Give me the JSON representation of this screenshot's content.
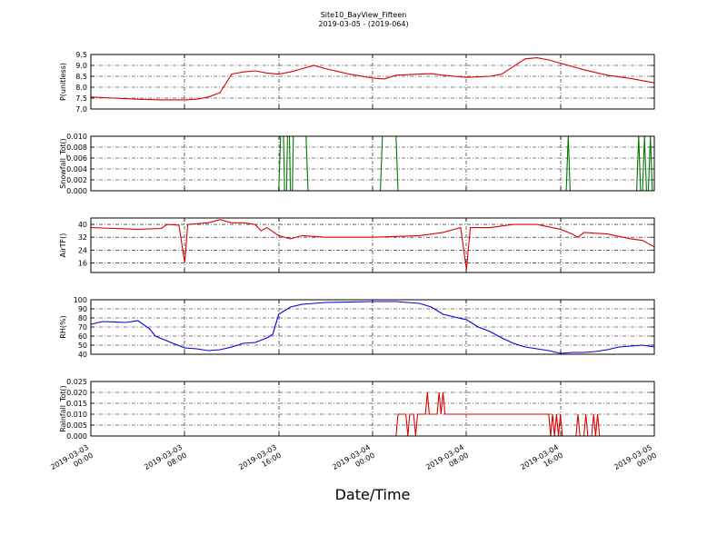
{
  "figure": {
    "title": "Site10_BayView_Fifteen",
    "subtitle": "2019-03-05 - (2019-064)",
    "xlabel": "Date/Time",
    "x_ticks": [
      {
        "l1": "2019-03-03",
        "l2": "00:00"
      },
      {
        "l1": "2019-03-03",
        "l2": "08:00"
      },
      {
        "l1": "2019-03-03",
        "l2": "16:00"
      },
      {
        "l1": "2019-03-04",
        "l2": "00:00"
      },
      {
        "l1": "2019-03-04",
        "l2": "08:00"
      },
      {
        "l1": "2019-03-04",
        "l2": "16:00"
      },
      {
        "l1": "2019-03-05",
        "l2": "00:00"
      }
    ]
  },
  "chart_data": [
    {
      "type": "line",
      "ylabel": "P(unitless)",
      "ylim": [
        7.0,
        9.5
      ],
      "yticks": [
        "7.0",
        "7.5",
        "8.0",
        "8.5",
        "9.0",
        "9.5"
      ],
      "grid": true,
      "xlim": [
        "2019-03-03 00:00",
        "2019-03-05 00:00"
      ],
      "color": "#dd0000",
      "points": [
        [
          "2019-03-03 00:00",
          7.55
        ],
        [
          "2019-03-03 02:00",
          7.5
        ],
        [
          "2019-03-03 04:00",
          7.45
        ],
        [
          "2019-03-03 06:00",
          7.42
        ],
        [
          "2019-03-03 08:00",
          7.42
        ],
        [
          "2019-03-03 09:00",
          7.45
        ],
        [
          "2019-03-03 10:00",
          7.55
        ],
        [
          "2019-03-03 11:00",
          7.75
        ],
        [
          "2019-03-03 12:00",
          8.6
        ],
        [
          "2019-03-03 13:00",
          8.7
        ],
        [
          "2019-03-03 14:00",
          8.75
        ],
        [
          "2019-03-03 15:00",
          8.65
        ],
        [
          "2019-03-03 16:00",
          8.6
        ],
        [
          "2019-03-03 17:00",
          8.7
        ],
        [
          "2019-03-03 18:00",
          8.85
        ],
        [
          "2019-03-03 19:00",
          9.0
        ],
        [
          "2019-03-03 20:00",
          8.85
        ],
        [
          "2019-03-03 22:00",
          8.6
        ],
        [
          "2019-03-04 00:00",
          8.42
        ],
        [
          "2019-03-04 01:00",
          8.38
        ],
        [
          "2019-03-04 02:00",
          8.55
        ],
        [
          "2019-03-04 04:00",
          8.6
        ],
        [
          "2019-03-04 05:00",
          8.62
        ],
        [
          "2019-03-04 06:00",
          8.55
        ],
        [
          "2019-03-04 08:00",
          8.45
        ],
        [
          "2019-03-04 10:00",
          8.5
        ],
        [
          "2019-03-04 11:00",
          8.6
        ],
        [
          "2019-03-04 12:00",
          8.95
        ],
        [
          "2019-03-04 13:00",
          9.3
        ],
        [
          "2019-03-04 14:00",
          9.35
        ],
        [
          "2019-03-04 15:00",
          9.25
        ],
        [
          "2019-03-04 16:00",
          9.1
        ],
        [
          "2019-03-04 18:00",
          8.8
        ],
        [
          "2019-03-04 20:00",
          8.55
        ],
        [
          "2019-03-04 22:00",
          8.4
        ],
        [
          "2019-03-05 00:00",
          8.2
        ]
      ]
    },
    {
      "type": "line",
      "ylabel": "Snowfall_Tot()",
      "ylim": [
        0.0,
        0.01
      ],
      "yticks": [
        "0.000",
        "0.002",
        "0.004",
        "0.006",
        "0.008",
        "0.010"
      ],
      "grid": true,
      "xlim": [
        "2019-03-03 00:00",
        "2019-03-05 00:00"
      ],
      "color": "#007700",
      "points": [
        [
          "2019-03-03 00:00",
          0
        ],
        [
          "2019-03-03 16:00",
          0
        ],
        [
          "2019-03-03 16:10",
          0.01
        ],
        [
          "2019-03-03 16:25",
          0.01
        ],
        [
          "2019-03-03 16:30",
          0
        ],
        [
          "2019-03-03 16:40",
          0
        ],
        [
          "2019-03-03 16:45",
          0.01
        ],
        [
          "2019-03-03 16:55",
          0.01
        ],
        [
          "2019-03-03 17:00",
          0
        ],
        [
          "2019-03-03 17:10",
          0
        ],
        [
          "2019-03-03 17:15",
          0.01
        ],
        [
          "2019-03-03 18:20",
          0.01
        ],
        [
          "2019-03-03 18:30",
          0
        ],
        [
          "2019-03-04 00:00",
          0
        ],
        [
          "2019-03-04 00:40",
          0
        ],
        [
          "2019-03-04 00:50",
          0.01
        ],
        [
          "2019-03-04 02:00",
          0.01
        ],
        [
          "2019-03-04 02:10",
          0
        ],
        [
          "2019-03-04 16:30",
          0
        ],
        [
          "2019-03-04 16:40",
          0.01
        ],
        [
          "2019-03-04 16:50",
          0
        ],
        [
          "2019-03-04 22:30",
          0
        ],
        [
          "2019-03-04 22:40",
          0.01
        ],
        [
          "2019-03-04 22:50",
          0
        ],
        [
          "2019-03-04 23:00",
          0
        ],
        [
          "2019-03-04 23:10",
          0.01
        ],
        [
          "2019-03-04 23:20",
          0
        ],
        [
          "2019-03-04 23:30",
          0
        ],
        [
          "2019-03-04 23:40",
          0.01
        ],
        [
          "2019-03-04 23:50",
          0
        ],
        [
          "2019-03-05 00:00",
          0
        ]
      ]
    },
    {
      "type": "line",
      "ylabel": "AirTF()",
      "ylim": [
        10,
        44
      ],
      "yticks": [
        "16",
        "24",
        "32",
        "40"
      ],
      "grid": true,
      "xlim": [
        "2019-03-03 00:00",
        "2019-03-05 00:00"
      ],
      "color": "#dd0000",
      "points": [
        [
          "2019-03-03 00:00",
          38
        ],
        [
          "2019-03-03 02:00",
          37.5
        ],
        [
          "2019-03-03 04:00",
          37
        ],
        [
          "2019-03-03 06:00",
          37.5
        ],
        [
          "2019-03-03 06:30",
          40
        ],
        [
          "2019-03-03 07:30",
          39.5
        ],
        [
          "2019-03-03 08:00",
          16
        ],
        [
          "2019-03-03 08:15",
          40
        ],
        [
          "2019-03-03 10:00",
          41
        ],
        [
          "2019-03-03 11:00",
          43
        ],
        [
          "2019-03-03 12:00",
          41
        ],
        [
          "2019-03-03 13:00",
          41
        ],
        [
          "2019-03-03 14:00",
          40
        ],
        [
          "2019-03-03 14:30",
          36
        ],
        [
          "2019-03-03 15:00",
          38
        ],
        [
          "2019-03-03 16:00",
          33
        ],
        [
          "2019-03-03 17:00",
          31
        ],
        [
          "2019-03-03 18:00",
          33
        ],
        [
          "2019-03-03 20:00",
          32
        ],
        [
          "2019-03-04 00:00",
          32
        ],
        [
          "2019-03-04 04:00",
          33
        ],
        [
          "2019-03-04 06:00",
          35
        ],
        [
          "2019-03-04 07:30",
          38
        ],
        [
          "2019-03-04 08:00",
          12
        ],
        [
          "2019-03-04 08:20",
          38
        ],
        [
          "2019-03-04 10:00",
          38
        ],
        [
          "2019-03-04 12:00",
          40
        ],
        [
          "2019-03-04 14:00",
          40
        ],
        [
          "2019-03-04 16:00",
          37
        ],
        [
          "2019-03-04 17:00",
          34
        ],
        [
          "2019-03-04 17:30",
          32
        ],
        [
          "2019-03-04 18:00",
          35
        ],
        [
          "2019-03-04 20:00",
          34
        ],
        [
          "2019-03-04 22:00",
          31
        ],
        [
          "2019-03-04 23:00",
          30
        ],
        [
          "2019-03-05 00:00",
          26
        ]
      ]
    },
    {
      "type": "line",
      "ylabel": "RH(%)",
      "ylim": [
        40,
        100
      ],
      "yticks": [
        "40",
        "50",
        "60",
        "70",
        "80",
        "90",
        "100"
      ],
      "grid": true,
      "xlim": [
        "2019-03-03 00:00",
        "2019-03-05 00:00"
      ],
      "color": "#0000dd",
      "points": [
        [
          "2019-03-03 00:00",
          73
        ],
        [
          "2019-03-03 01:00",
          76
        ],
        [
          "2019-03-03 03:00",
          75
        ],
        [
          "2019-03-03 04:00",
          77
        ],
        [
          "2019-03-03 05:00",
          68
        ],
        [
          "2019-03-03 05:30",
          60
        ],
        [
          "2019-03-03 07:00",
          52
        ],
        [
          "2019-03-03 08:00",
          47
        ],
        [
          "2019-03-03 09:00",
          46
        ],
        [
          "2019-03-03 10:00",
          44
        ],
        [
          "2019-03-03 11:00",
          45
        ],
        [
          "2019-03-03 12:00",
          48
        ],
        [
          "2019-03-03 13:00",
          52
        ],
        [
          "2019-03-03 14:00",
          53
        ],
        [
          "2019-03-03 15:00",
          58
        ],
        [
          "2019-03-03 15:30",
          62
        ],
        [
          "2019-03-03 16:00",
          84
        ],
        [
          "2019-03-03 17:00",
          92
        ],
        [
          "2019-03-03 18:00",
          95
        ],
        [
          "2019-03-03 20:00",
          97
        ],
        [
          "2019-03-04 00:00",
          98
        ],
        [
          "2019-03-04 02:00",
          98
        ],
        [
          "2019-03-04 04:00",
          96
        ],
        [
          "2019-03-04 05:00",
          92
        ],
        [
          "2019-03-04 06:00",
          84
        ],
        [
          "2019-03-04 07:00",
          81
        ],
        [
          "2019-03-04 08:00",
          78
        ],
        [
          "2019-03-04 09:00",
          70
        ],
        [
          "2019-03-04 10:00",
          65
        ],
        [
          "2019-03-04 11:00",
          58
        ],
        [
          "2019-03-04 12:00",
          52
        ],
        [
          "2019-03-04 13:00",
          48
        ],
        [
          "2019-03-04 14:00",
          46
        ],
        [
          "2019-03-04 15:00",
          44
        ],
        [
          "2019-03-04 16:00",
          41
        ],
        [
          "2019-03-04 17:00",
          42
        ],
        [
          "2019-03-04 18:00",
          42
        ],
        [
          "2019-03-04 19:00",
          43
        ],
        [
          "2019-03-04 20:00",
          45
        ],
        [
          "2019-03-04 21:00",
          48
        ],
        [
          "2019-03-04 22:00",
          49
        ],
        [
          "2019-03-04 23:00",
          50
        ],
        [
          "2019-03-05 00:00",
          48
        ]
      ]
    },
    {
      "type": "line",
      "ylabel": "Rainfall_Tot()",
      "ylim": [
        0.0,
        0.025
      ],
      "yticks": [
        "0.000",
        "0.005",
        "0.010",
        "0.015",
        "0.020",
        "0.025"
      ],
      "grid": true,
      "xlim": [
        "2019-03-03 00:00",
        "2019-03-05 00:00"
      ],
      "color": "#dd0000",
      "points": [
        [
          "2019-03-03 00:00",
          0
        ],
        [
          "2019-03-04 02:00",
          0
        ],
        [
          "2019-03-04 02:10",
          0.01
        ],
        [
          "2019-03-04 02:50",
          0.01
        ],
        [
          "2019-03-04 03:00",
          0
        ],
        [
          "2019-03-04 03:10",
          0.01
        ],
        [
          "2019-03-04 03:30",
          0.01
        ],
        [
          "2019-03-04 03:40",
          0
        ],
        [
          "2019-03-04 03:50",
          0.01
        ],
        [
          "2019-03-04 04:30",
          0.01
        ],
        [
          "2019-03-04 04:40",
          0.02
        ],
        [
          "2019-03-04 04:50",
          0.01
        ],
        [
          "2019-03-04 05:30",
          0.01
        ],
        [
          "2019-03-04 05:40",
          0.02
        ],
        [
          "2019-03-04 05:50",
          0.01
        ],
        [
          "2019-03-04 06:00",
          0.02
        ],
        [
          "2019-03-04 06:10",
          0.01
        ],
        [
          "2019-03-04 15:00",
          0.01
        ],
        [
          "2019-03-04 15:10",
          0
        ],
        [
          "2019-03-04 15:20",
          0.01
        ],
        [
          "2019-03-04 15:30",
          0
        ],
        [
          "2019-03-04 15:40",
          0.01
        ],
        [
          "2019-03-04 15:50",
          0
        ],
        [
          "2019-03-04 16:00",
          0.01
        ],
        [
          "2019-03-04 16:10",
          0
        ],
        [
          "2019-03-04 17:20",
          0
        ],
        [
          "2019-03-04 17:30",
          0.01
        ],
        [
          "2019-03-04 17:40",
          0
        ],
        [
          "2019-03-04 18:00",
          0
        ],
        [
          "2019-03-04 18:10",
          0.01
        ],
        [
          "2019-03-04 18:20",
          0
        ],
        [
          "2019-03-04 18:40",
          0
        ],
        [
          "2019-03-04 18:50",
          0.01
        ],
        [
          "2019-03-04 19:00",
          0
        ],
        [
          "2019-03-04 19:10",
          0.01
        ],
        [
          "2019-03-04 19:20",
          0
        ],
        [
          "2019-03-05 00:00",
          0
        ]
      ]
    }
  ]
}
